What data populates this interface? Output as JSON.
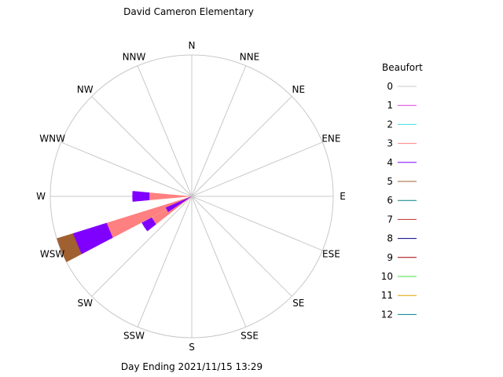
{
  "chart_data": {
    "type": "wind-rose",
    "title": "David Cameron Elementary",
    "subtitle": "Day Ending 2021/11/15 13:29",
    "directions": [
      "N",
      "NNE",
      "NE",
      "ENE",
      "E",
      "ESE",
      "SE",
      "SSE",
      "S",
      "SSW",
      "SW",
      "WSW",
      "W",
      "WNW",
      "NW",
      "NNW"
    ],
    "legend": {
      "title": "Beaufort",
      "entries": [
        {
          "label": "0",
          "color": "#c8c8c8"
        },
        {
          "label": "1",
          "color": "#e040e0"
        },
        {
          "label": "2",
          "color": "#40e0e0"
        },
        {
          "label": "3",
          "color": "#ff8080"
        },
        {
          "label": "4",
          "color": "#8000ff"
        },
        {
          "label": "5",
          "color": "#a06030"
        },
        {
          "label": "6",
          "color": "#008080"
        },
        {
          "label": "7",
          "color": "#c03030"
        },
        {
          "label": "8",
          "color": "#000080"
        },
        {
          "label": "9",
          "color": "#a00000"
        },
        {
          "label": "10",
          "color": "#40e040"
        },
        {
          "label": "11",
          "color": "#e0a000"
        },
        {
          "label": "12",
          "color": "#008090"
        }
      ]
    },
    "max_radius_value": 100,
    "series": [
      {
        "direction": "W",
        "segments": [
          {
            "beaufort": 3,
            "value": 30
          },
          {
            "beaufort": 4,
            "value": 12
          }
        ]
      },
      {
        "direction": "WSW",
        "segments": [
          {
            "beaufort": 3,
            "value": 63
          },
          {
            "beaufort": 4,
            "value": 25
          },
          {
            "beaufort": 5,
            "value": 12
          }
        ]
      },
      {
        "direction": "SW",
        "segments": [
          {
            "beaufort": 3,
            "value": 32
          },
          {
            "beaufort": 4,
            "value": 8
          }
        ]
      },
      {
        "direction": "WSW_inner",
        "segments": [
          {
            "beaufort": 4,
            "value": 20
          }
        ]
      }
    ]
  }
}
